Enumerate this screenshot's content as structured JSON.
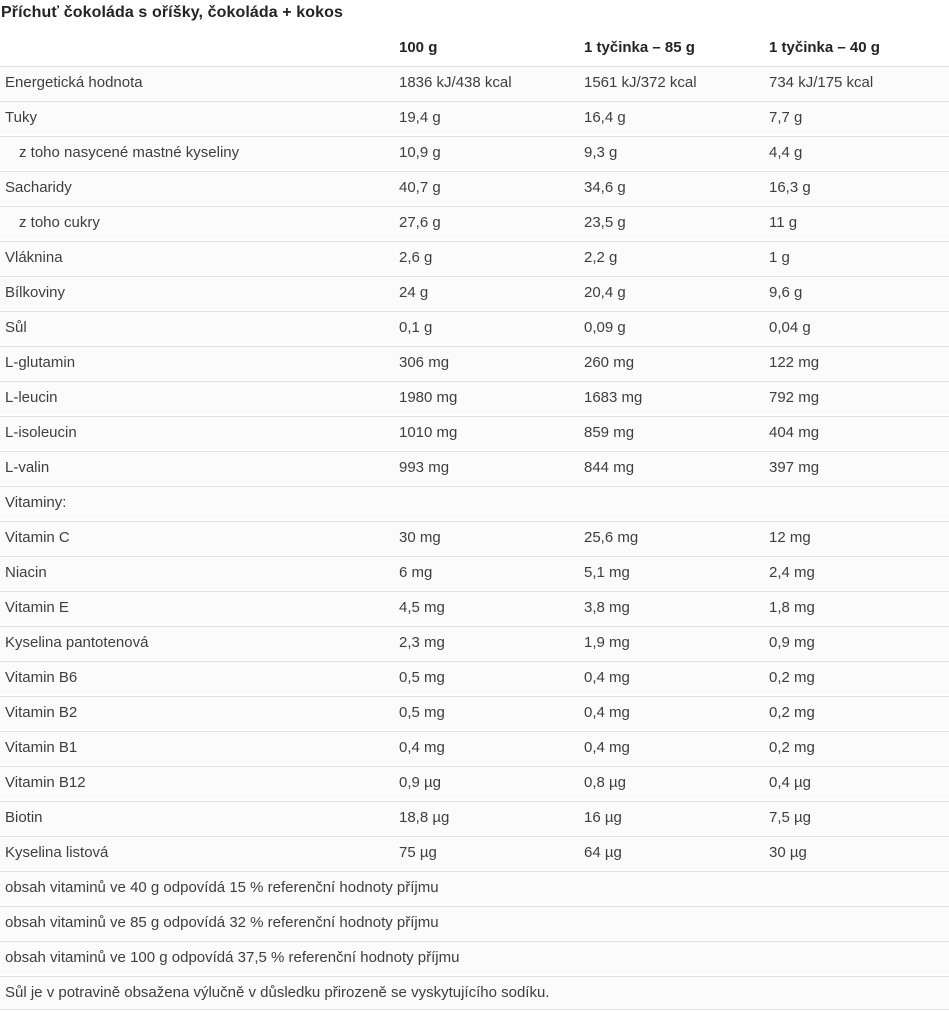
{
  "title": "Příchuť čokoláda s oříšky, čokoláda + kokos",
  "table": {
    "columns": [
      "100 g",
      "1 tyčinka – 85 g",
      "1 tyčinka – 40 g"
    ],
    "rows": [
      {
        "label": "Energetická hodnota",
        "indent": false,
        "values": [
          "1836 kJ/438 kcal",
          "1561 kJ/372 kcal",
          "734 kJ/175 kcal"
        ]
      },
      {
        "label": "Tuky",
        "indent": false,
        "values": [
          "19,4 g",
          "16,4 g",
          "7,7 g"
        ]
      },
      {
        "label": "z toho nasycené mastné kyseliny",
        "indent": true,
        "values": [
          "10,9 g",
          "9,3 g",
          "4,4 g"
        ]
      },
      {
        "label": "Sacharidy",
        "indent": false,
        "values": [
          "40,7 g",
          "34,6 g",
          "16,3 g"
        ]
      },
      {
        "label": "z toho cukry",
        "indent": true,
        "values": [
          "27,6 g",
          "23,5 g",
          "11 g"
        ]
      },
      {
        "label": "Vláknina",
        "indent": false,
        "values": [
          "2,6 g",
          "2,2 g",
          "1 g"
        ]
      },
      {
        "label": "Bílkoviny",
        "indent": false,
        "values": [
          "24 g",
          "20,4 g",
          "9,6 g"
        ]
      },
      {
        "label": "Sůl",
        "indent": false,
        "values": [
          "0,1 g",
          "0,09 g",
          "0,04 g"
        ]
      },
      {
        "label": "L-glutamin",
        "indent": false,
        "values": [
          "306 mg",
          "260 mg",
          "122 mg"
        ]
      },
      {
        "label": "L-leucin",
        "indent": false,
        "values": [
          "1980 mg",
          "1683 mg",
          "792 mg"
        ]
      },
      {
        "label": "L-isoleucin",
        "indent": false,
        "values": [
          "1010 mg",
          "859 mg",
          "404 mg"
        ]
      },
      {
        "label": "L-valin",
        "indent": false,
        "values": [
          "993 mg",
          "844 mg",
          "397 mg"
        ]
      },
      {
        "label": "Vitaminy:",
        "indent": false,
        "values": [
          "",
          "",
          ""
        ]
      },
      {
        "label": "Vitamin C",
        "indent": false,
        "values": [
          "30 mg",
          "25,6 mg",
          "12 mg"
        ]
      },
      {
        "label": "Niacin",
        "indent": false,
        "values": [
          "6 mg",
          "5,1 mg",
          "2,4 mg"
        ]
      },
      {
        "label": "Vitamin E",
        "indent": false,
        "values": [
          "4,5 mg",
          "3,8 mg",
          "1,8 mg"
        ]
      },
      {
        "label": "Kyselina pantotenová",
        "indent": false,
        "values": [
          "2,3 mg",
          "1,9 mg",
          "0,9 mg"
        ]
      },
      {
        "label": "Vitamin B6",
        "indent": false,
        "values": [
          "0,5 mg",
          "0,4 mg",
          "0,2 mg"
        ]
      },
      {
        "label": "Vitamin B2",
        "indent": false,
        "values": [
          "0,5 mg",
          "0,4 mg",
          "0,2 mg"
        ]
      },
      {
        "label": "Vitamin B1",
        "indent": false,
        "values": [
          "0,4 mg",
          "0,4 mg",
          "0,2 mg"
        ]
      },
      {
        "label": "Vitamin B12",
        "indent": false,
        "values": [
          "0,9 µg",
          "0,8 µg",
          "0,4 µg"
        ]
      },
      {
        "label": "Biotin",
        "indent": false,
        "values": [
          "18,8 µg",
          "16 µg",
          "7,5 µg"
        ]
      },
      {
        "label": "Kyselina listová",
        "indent": false,
        "values": [
          "75 µg",
          "64 µg",
          "30 µg"
        ]
      }
    ],
    "footnotes": [
      "obsah vitaminů ve 40 g odpovídá 15 % referenční hodnoty příjmu",
      "obsah vitaminů ve 85 g odpovídá 32 % referenční hodnoty příjmu",
      "obsah vitaminů ve 100 g odpovídá 37,5 % referenční hodnoty příjmu",
      "Sůl je v potravině obsažena výlučně v důsledku přirozeně se vyskytujícího sodíku."
    ]
  }
}
